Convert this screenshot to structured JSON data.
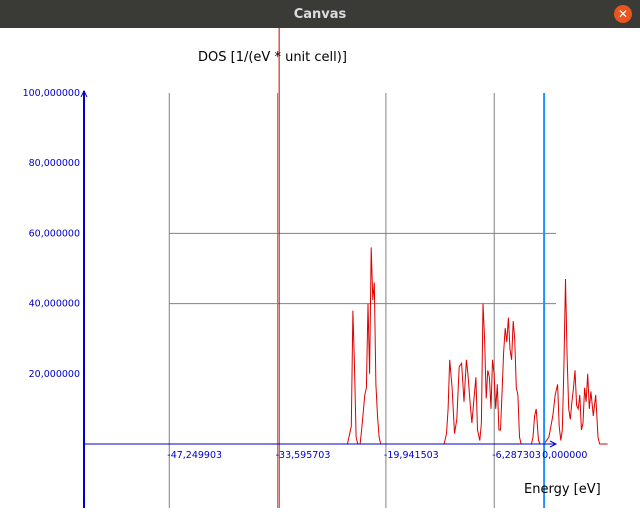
{
  "window": {
    "title": "Canvas",
    "close_icon": "close-icon",
    "close_glyph": "✕"
  },
  "chart_data": {
    "type": "line",
    "ylabel": "DOS [1/(eV * unit cell)]",
    "xlabel": "Energy [eV]",
    "xlim": [
      -58.0,
      1.5
    ],
    "ylim": [
      0,
      100
    ],
    "x_ticks": [
      {
        "value": -47.249903,
        "label": "-47,249903"
      },
      {
        "value": -33.595703,
        "label": "-33,595703"
      },
      {
        "value": -19.941503,
        "label": "-19,941503"
      },
      {
        "value": -6.287303,
        "label": "-6,287303"
      },
      {
        "value": 0.0,
        "label": "0,000000"
      }
    ],
    "y_ticks": [
      {
        "value": 20,
        "label": "20,000000"
      },
      {
        "value": 40,
        "label": "40,000000"
      },
      {
        "value": 60,
        "label": "60,000000"
      },
      {
        "value": 80,
        "label": "80,000000"
      },
      {
        "value": 100,
        "label": "100,000000"
      }
    ],
    "grid": true,
    "colors": {
      "axis": "#0000cc",
      "grid": "#808080",
      "series": "#dd0000",
      "fermi": "#1e90ff",
      "core": "#cc0000"
    },
    "core_level_x": -33.4,
    "fermi_level_x": 0.0,
    "series": [
      {
        "x": [
          -58.0,
          -24.8,
          -24.3,
          -24.1,
          -23.9,
          -23.7,
          -23.5,
          -23.2,
          -23.0,
          -22.6,
          -22.4,
          -22.2,
          -22.0,
          -21.8,
          -21.6,
          -21.4,
          -21.2,
          -21.0,
          -20.8,
          -20.6,
          -12.6,
          -12.3,
          -12.1,
          -11.9,
          -11.6,
          -11.3,
          -11.0,
          -10.7,
          -10.4,
          -10.1,
          -9.8,
          -9.6,
          -9.3,
          -9.1,
          -8.8,
          -8.6,
          -8.4,
          -8.1,
          -7.9,
          -7.7,
          -7.5,
          -7.3,
          -7.1,
          -6.9,
          -6.7,
          -6.5,
          -6.3,
          -6.1,
          -5.9,
          -5.7,
          -5.5,
          -5.3,
          -5.1,
          -4.9,
          -4.7,
          -4.5,
          -4.3,
          -4.1,
          -3.9,
          -3.7,
          -3.5,
          -3.3,
          -3.1,
          -2.9,
          -2.7,
          -2.5,
          -2.3,
          -2.0,
          -1.8,
          -1.6,
          -1.4,
          -1.2,
          -1.0,
          -0.7,
          -0.5,
          0.0,
          0.6,
          1.1,
          1.4,
          1.7,
          1.9,
          2.1,
          2.3,
          2.5,
          2.7,
          2.9,
          3.1,
          3.3,
          3.5,
          3.7,
          3.9,
          4.1,
          4.3,
          4.5,
          4.7,
          4.9,
          5.1,
          5.3,
          5.5,
          5.7,
          5.9,
          6.2,
          6.5,
          6.8,
          7.0,
          7.3,
          7.6,
          8.0
        ],
        "y": [
          0,
          0,
          5,
          38,
          22,
          2,
          0,
          0,
          4,
          14,
          16,
          40,
          20,
          56,
          41,
          46,
          17,
          8,
          2,
          0,
          0,
          3,
          10,
          24,
          16,
          3,
          7,
          22,
          23,
          12,
          24,
          20,
          11,
          6,
          14,
          19,
          4,
          1,
          6,
          40,
          30,
          13,
          21,
          19,
          10,
          24,
          20,
          10,
          17,
          4,
          4,
          15,
          26,
          33,
          29,
          36,
          27,
          24,
          35,
          30,
          16,
          14,
          2,
          0,
          0,
          0,
          0,
          0,
          0,
          0,
          2,
          8,
          10,
          1,
          0,
          0,
          2,
          8,
          14,
          17,
          5,
          1,
          4,
          22,
          47,
          25,
          10,
          7,
          12,
          16,
          21,
          11,
          10,
          14,
          4,
          6,
          16,
          12,
          20,
          10,
          15,
          8,
          14,
          2,
          0,
          0,
          0,
          0
        ]
      }
    ]
  }
}
